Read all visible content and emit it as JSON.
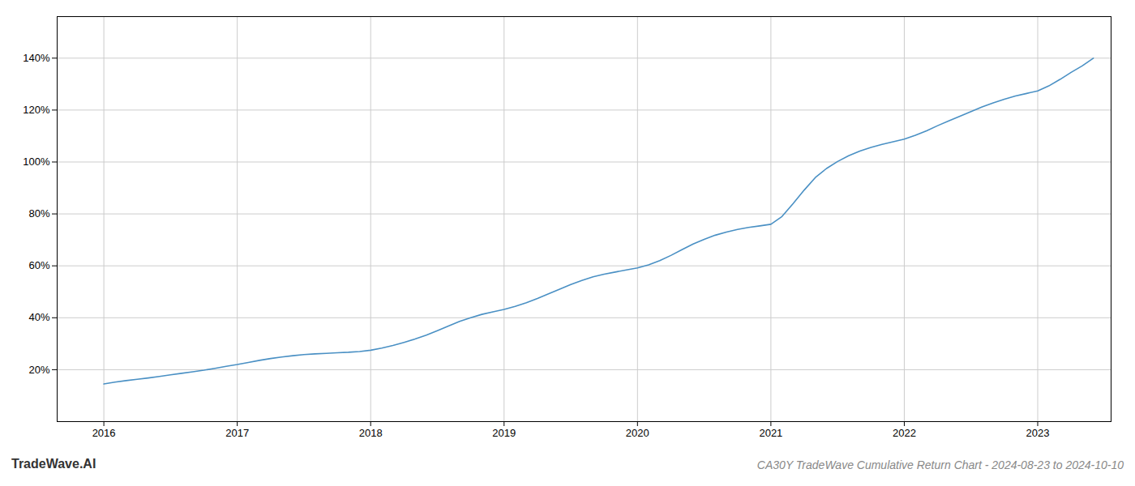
{
  "chart_data": {
    "type": "line",
    "title": "CA30Y TradeWave Cumulative Return Chart - 2024-08-23 to 2024-10-10",
    "annotations": [
      "TradeWave.AI"
    ],
    "color": "#4a90c4",
    "x": [
      2016.0,
      2016.083,
      2016.167,
      2016.25,
      2016.333,
      2016.417,
      2016.5,
      2016.583,
      2016.667,
      2016.75,
      2016.833,
      2016.917,
      2017.0,
      2017.083,
      2017.167,
      2017.25,
      2017.333,
      2017.417,
      2017.5,
      2017.583,
      2017.667,
      2017.75,
      2017.833,
      2017.917,
      2018.0,
      2018.083,
      2018.167,
      2018.25,
      2018.333,
      2018.417,
      2018.5,
      2018.583,
      2018.667,
      2018.75,
      2018.833,
      2018.917,
      2019.0,
      2019.083,
      2019.167,
      2019.25,
      2019.333,
      2019.417,
      2019.5,
      2019.583,
      2019.667,
      2019.75,
      2019.833,
      2019.917,
      2020.0,
      2020.083,
      2020.167,
      2020.25,
      2020.333,
      2020.417,
      2020.5,
      2020.583,
      2020.667,
      2020.75,
      2020.833,
      2020.917,
      2021.0,
      2021.083,
      2021.167,
      2021.25,
      2021.333,
      2021.417,
      2021.5,
      2021.583,
      2021.667,
      2021.75,
      2021.833,
      2021.917,
      2022.0,
      2022.083,
      2022.167,
      2022.25,
      2022.333,
      2022.417,
      2022.5,
      2022.583,
      2022.667,
      2022.75,
      2022.833,
      2022.917,
      2023.0,
      2023.083,
      2023.167,
      2023.25,
      2023.333,
      2023.417
    ],
    "values": [
      0.145,
      0.152,
      0.158,
      0.163,
      0.168,
      0.174,
      0.18,
      0.186,
      0.192,
      0.198,
      0.205,
      0.213,
      0.22,
      0.228,
      0.236,
      0.243,
      0.249,
      0.254,
      0.258,
      0.261,
      0.263,
      0.265,
      0.267,
      0.27,
      0.275,
      0.283,
      0.293,
      0.305,
      0.318,
      0.333,
      0.35,
      0.368,
      0.386,
      0.4,
      0.413,
      0.423,
      0.432,
      0.444,
      0.458,
      0.474,
      0.492,
      0.51,
      0.528,
      0.544,
      0.558,
      0.568,
      0.576,
      0.584,
      0.592,
      0.604,
      0.62,
      0.64,
      0.662,
      0.684,
      0.702,
      0.718,
      0.73,
      0.74,
      0.748,
      0.754,
      0.76,
      0.79,
      0.84,
      0.892,
      0.94,
      0.975,
      1.002,
      1.024,
      1.042,
      1.056,
      1.068,
      1.078,
      1.088,
      1.103,
      1.12,
      1.14,
      1.158,
      1.176,
      1.194,
      1.212,
      1.228,
      1.242,
      1.254,
      1.264,
      1.274,
      1.293,
      1.318,
      1.345,
      1.37,
      1.4
    ],
    "xlim": [
      2015.65,
      2023.55
    ],
    "ylim": [
      0.0,
      1.56
    ],
    "xticks": [
      2016,
      2017,
      2018,
      2019,
      2020,
      2021,
      2022,
      2023
    ],
    "yticks": [
      {
        "value": 0.2,
        "label": "20%"
      },
      {
        "value": 0.4,
        "label": "40%"
      },
      {
        "value": 0.6,
        "label": "60%"
      },
      {
        "value": 0.8,
        "label": "80%"
      },
      {
        "value": 1.0,
        "label": "100%"
      },
      {
        "value": 1.2,
        "label": "120%"
      },
      {
        "value": 1.4,
        "label": "140%"
      }
    ],
    "grid": true
  }
}
